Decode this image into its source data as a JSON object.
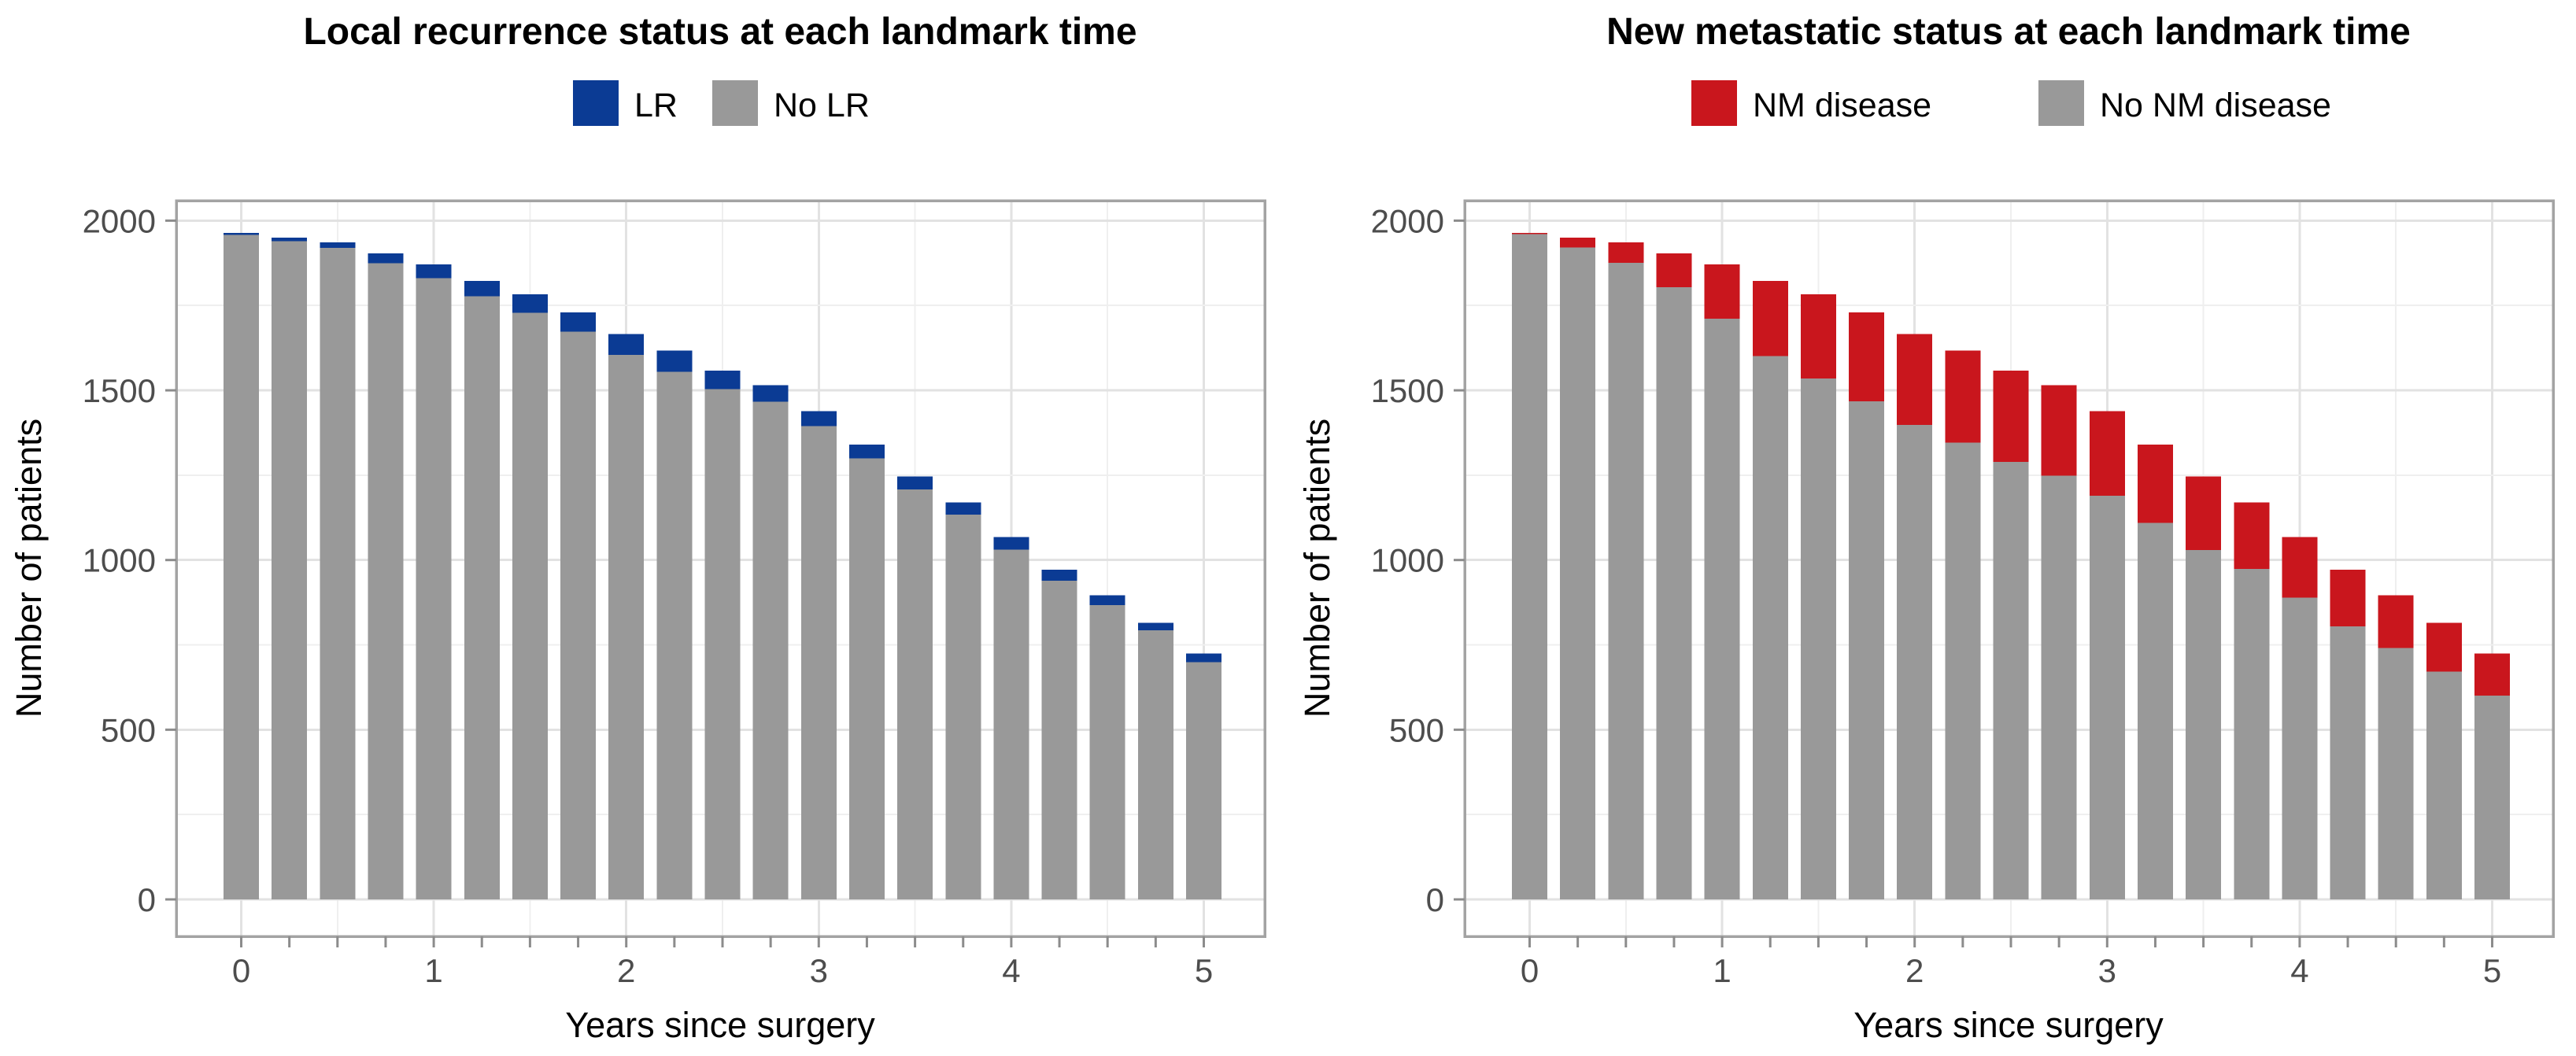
{
  "chart_data": [
    {
      "type": "bar",
      "stacked": true,
      "title": "Local recurrence status at each landmark time",
      "xlabel": "Years since surgery",
      "ylabel": "Number of patients",
      "x": [
        0,
        0.25,
        0.5,
        0.75,
        1,
        1.25,
        1.5,
        1.75,
        2,
        2.25,
        2.5,
        2.75,
        3,
        3.25,
        3.5,
        3.75,
        4,
        4.25,
        4.5,
        4.75,
        5
      ],
      "xticks": [
        0,
        1,
        2,
        3,
        4,
        5
      ],
      "yticks": [
        0,
        500,
        1000,
        1500,
        2000
      ],
      "ylim": [
        0,
        2000
      ],
      "grid": true,
      "legend_position": "top",
      "series": [
        {
          "name": "LR",
          "color": "#0B3B94",
          "values": [
            6,
            11,
            16,
            29,
            40,
            45,
            55,
            57,
            61,
            62,
            54,
            48,
            44,
            40,
            38,
            36,
            37,
            33,
            29,
            22,
            25
          ]
        },
        {
          "name": "No LR",
          "color": "#999999",
          "values": [
            1958,
            1939,
            1920,
            1875,
            1831,
            1777,
            1728,
            1673,
            1605,
            1555,
            1504,
            1467,
            1395,
            1300,
            1208,
            1134,
            1031,
            939,
            867,
            793,
            699
          ]
        }
      ]
    },
    {
      "type": "bar",
      "stacked": true,
      "title": "New metastatic status at each landmark time",
      "xlabel": "Years since surgery",
      "ylabel": "Number of patients",
      "x": [
        0,
        0.25,
        0.5,
        0.75,
        1,
        1.25,
        1.5,
        1.75,
        2,
        2.25,
        2.5,
        2.75,
        3,
        3.25,
        3.5,
        3.75,
        4,
        4.25,
        4.5,
        4.75,
        5
      ],
      "xticks": [
        0,
        1,
        2,
        3,
        4,
        5
      ],
      "yticks": [
        0,
        500,
        1000,
        1500,
        2000
      ],
      "ylim": [
        0,
        2000
      ],
      "grid": true,
      "legend_position": "top",
      "series": [
        {
          "name": "NM disease",
          "color": "#C9161D",
          "values": [
            4,
            29,
            60,
            100,
            160,
            221,
            248,
            262,
            268,
            271,
            269,
            266,
            250,
            231,
            216,
            196,
            179,
            167,
            155,
            144,
            123
          ]
        },
        {
          "name": "No NM disease",
          "color": "#999999",
          "values": [
            1960,
            1921,
            1876,
            1804,
            1711,
            1601,
            1535,
            1468,
            1398,
            1346,
            1289,
            1249,
            1189,
            1109,
            1030,
            974,
            889,
            805,
            741,
            671,
            601
          ]
        }
      ]
    }
  ],
  "style": {
    "bar_gray": "#999999",
    "accent_blue": "#0B3B94",
    "accent_red": "#C9161D",
    "grid_major": "#E2E2E2",
    "grid_minor": "#EFEFEF",
    "panel_border": "#A3A3A3",
    "tick_color": "#8C8C8C",
    "tick_label_color": "#4D4D4D",
    "title_color": "#000000"
  }
}
